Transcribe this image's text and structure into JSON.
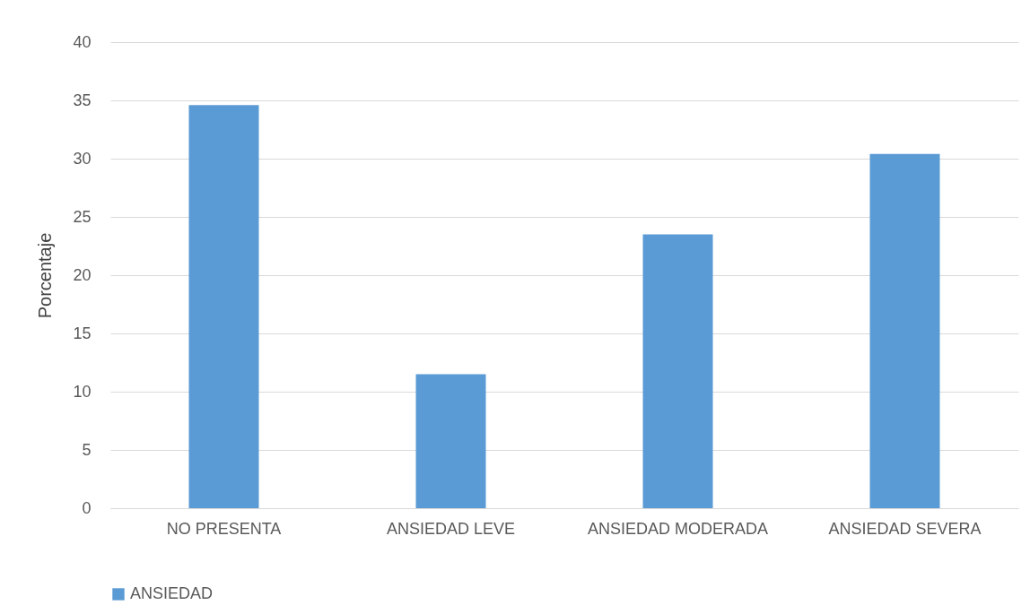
{
  "chart_data": {
    "type": "bar",
    "ylabel": "Porcentaje",
    "categories": [
      "NO PRESENTA",
      "ANSIEDAD LEVE",
      "ANSIEDAD MODERADA",
      "ANSIEDAD SEVERA"
    ],
    "series": [
      {
        "name": "ANSIEDAD",
        "color": "#5b9bd5",
        "values": [
          34.6,
          11.5,
          23.5,
          30.4
        ]
      }
    ],
    "ylim": [
      0,
      40
    ],
    "yticks": [
      0,
      5,
      10,
      15,
      20,
      25,
      30,
      35,
      40
    ],
    "grid": "y",
    "legend": "bottom"
  }
}
